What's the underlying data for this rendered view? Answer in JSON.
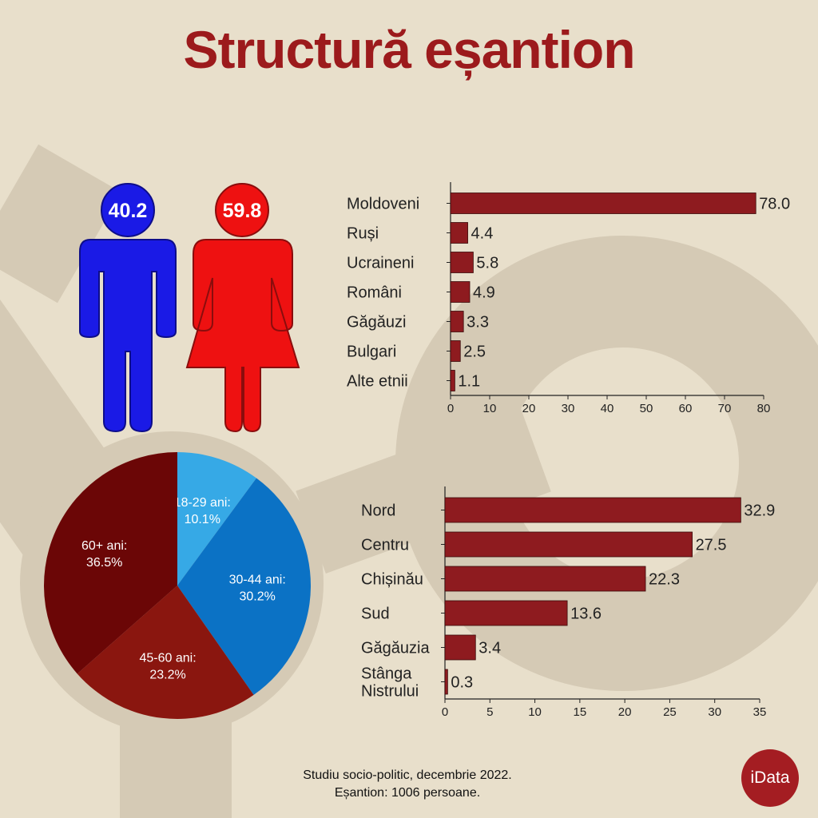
{
  "title": "Structură eșantion",
  "gender": {
    "male": {
      "value": 40.2,
      "color": "#1a1ae6"
    },
    "female": {
      "value": 59.8,
      "color": "#ee1111"
    }
  },
  "chart_data": [
    {
      "type": "bar",
      "orientation": "horizontal",
      "categories": [
        "Moldoveni",
        "Ruși",
        "Ucraineni",
        "Români",
        "Găgăuzi",
        "Bulgari",
        "Alte etnii"
      ],
      "values": [
        78.0,
        4.4,
        5.8,
        4.9,
        3.3,
        2.5,
        1.1
      ],
      "value_labels": [
        "78.0",
        "4.4",
        "5.8",
        "4.9",
        "3.3",
        "2.5",
        "1.1"
      ],
      "xlim": [
        0,
        80
      ],
      "xticks": [
        0,
        10,
        20,
        30,
        40,
        50,
        60,
        70,
        80
      ],
      "color": "#8e1b1f",
      "grid": false
    },
    {
      "type": "pie",
      "slices": [
        {
          "label": "18-29 ani:",
          "pct": "10.1%",
          "value": 10.1,
          "color": "#36a9e6"
        },
        {
          "label": "30-44 ani:",
          "pct": "30.2%",
          "value": 30.2,
          "color": "#0b72c5"
        },
        {
          "label": "45-60 ani:",
          "pct": "23.2%",
          "value": 23.2,
          "color": "#8a160f"
        },
        {
          "label": "60+ ani:",
          "pct": "36.5%",
          "value": 36.5,
          "color": "#6b0606"
        }
      ]
    },
    {
      "type": "bar",
      "orientation": "horizontal",
      "categories": [
        "Nord",
        "Centru",
        "Chișinău",
        "Sud",
        "Găgăuzia",
        "Stânga Nistrului"
      ],
      "values": [
        32.9,
        27.5,
        22.3,
        13.6,
        3.4,
        0.3
      ],
      "value_labels": [
        "32.9",
        "27.5",
        "22.3",
        "13.6",
        "3.4",
        "0.3"
      ],
      "xlim": [
        0,
        35
      ],
      "xticks": [
        0,
        5,
        10,
        15,
        20,
        25,
        30,
        35
      ],
      "color": "#8e1b1f",
      "grid": false
    }
  ],
  "footer": {
    "line1": "Studiu socio-politic, decembrie 2022.",
    "line2": "Eșantion: 1006 persoane."
  },
  "logo": "iData"
}
